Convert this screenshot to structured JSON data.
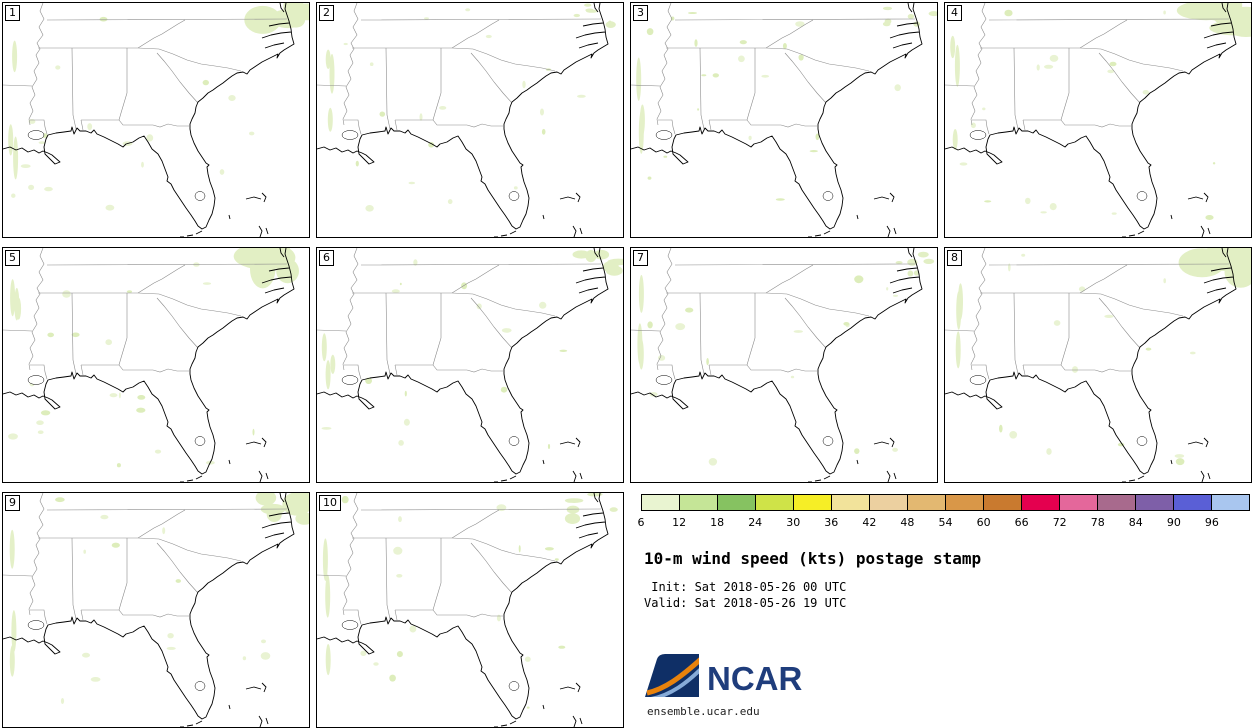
{
  "page": {
    "background": "#ffffff"
  },
  "panels": [
    {
      "label": "1"
    },
    {
      "label": "2"
    },
    {
      "label": "3"
    },
    {
      "label": "4"
    },
    {
      "label": "5"
    },
    {
      "label": "6"
    },
    {
      "label": "7"
    },
    {
      "label": "8"
    },
    {
      "label": "9"
    },
    {
      "label": "10"
    }
  ],
  "legend": {
    "colorbar": {
      "ticks": [
        "6",
        "12",
        "18",
        "24",
        "30",
        "36",
        "42",
        "48",
        "54",
        "60",
        "66",
        "72",
        "78",
        "84",
        "90",
        "96"
      ],
      "segment_colors": [
        "#e9f4d1",
        "#c5e597",
        "#86c261",
        "#cfe348",
        "#f6ee26",
        "#f2e39b",
        "#ecd0a0",
        "#e3b871",
        "#d99748",
        "#c97a2f",
        "#e4004f",
        "#e4679b",
        "#a86a8d",
        "#7e5fa8",
        "#5a5fd6",
        "#a9c6ef"
      ]
    },
    "title": "10-m wind speed (kts) postage stamp",
    "init_line": " Init: Sat 2018-05-26 00 UTC",
    "valid_line": "Valid: Sat 2018-05-26 19 UTC"
  },
  "branding": {
    "logo_text": "NCAR",
    "site": "ensemble.ucar.edu",
    "logo_navy": "#0f2f66",
    "logo_orange": "#e8820c",
    "logo_lightblue": "#86abd8",
    "logo_text_color": "#1f3d7c"
  },
  "map_colors": {
    "coastline": "#000000",
    "state_border": "#8c8c8c",
    "light_wind_fill": "#e9f3d3"
  }
}
